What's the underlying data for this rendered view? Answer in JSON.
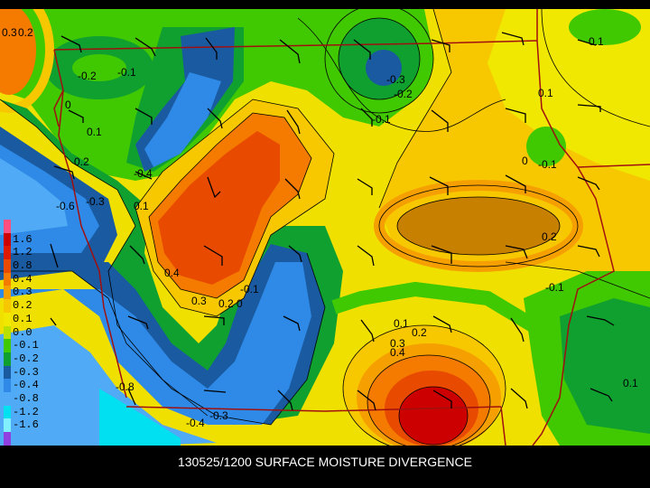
{
  "caption": "130525/1200 SURFACE MOISTURE DIVERGENCE",
  "legend": {
    "entries": [
      {
        "label": "",
        "color": "#ff5080"
      },
      {
        "label": "1.6",
        "color": "#cc0000"
      },
      {
        "label": "1.2",
        "color": "#dd1a00"
      },
      {
        "label": "0.8",
        "color": "#e84a00"
      },
      {
        "label": "0.4",
        "color": "#f57a00"
      },
      {
        "label": "0.3",
        "color": "#f5a000"
      },
      {
        "label": "0.2",
        "color": "#f7c800"
      },
      {
        "label": "0.1",
        "color": "#f0e800"
      },
      {
        "label": "0.0",
        "color": "#b8e000"
      },
      {
        "label": "-0.1",
        "color": "#40c800"
      },
      {
        "label": "-0.2",
        "color": "#10a030"
      },
      {
        "label": "-0.3",
        "color": "#1a5aa0"
      },
      {
        "label": "-0.4",
        "color": "#2e8ae6"
      },
      {
        "label": "-0.8",
        "color": "#50aaf5"
      },
      {
        "label": "-1.2",
        "color": "#00e0f0"
      },
      {
        "label": "-1.6",
        "color": "#80f0ff"
      },
      {
        "label": "",
        "color": "#9040e0"
      }
    ]
  },
  "contour_labels": [
    "0.3",
    "0.2",
    "-0.2",
    "-0.1",
    "0",
    "0.1",
    "0.2",
    "-0.6",
    "-0.3",
    "0.1",
    "-0.4",
    "0.4",
    "0.3",
    "0.2",
    "0",
    "-0.1",
    "-0.3",
    "-0.2",
    "-0.1",
    "0",
    "-0.1",
    "0.1",
    "0.1",
    "0.2",
    "-0.1",
    "0.1",
    "0.2",
    "0.3",
    "0.4",
    "-0.8",
    "-0.4",
    "-0.3",
    "0.1"
  ]
}
